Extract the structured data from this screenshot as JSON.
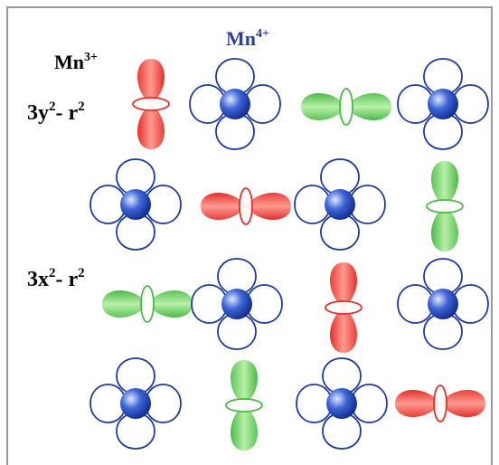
{
  "labels": {
    "mn3": {
      "base": "Mn",
      "sup": "3+"
    },
    "mn4": {
      "base": "Mn",
      "sup": "4+"
    },
    "row_y": {
      "a": "3y",
      "b": "2",
      "c": "- r",
      "d": "2"
    },
    "row_x": {
      "a": "3x",
      "b": "2",
      "c": "- r",
      "d": "2"
    }
  }
}
